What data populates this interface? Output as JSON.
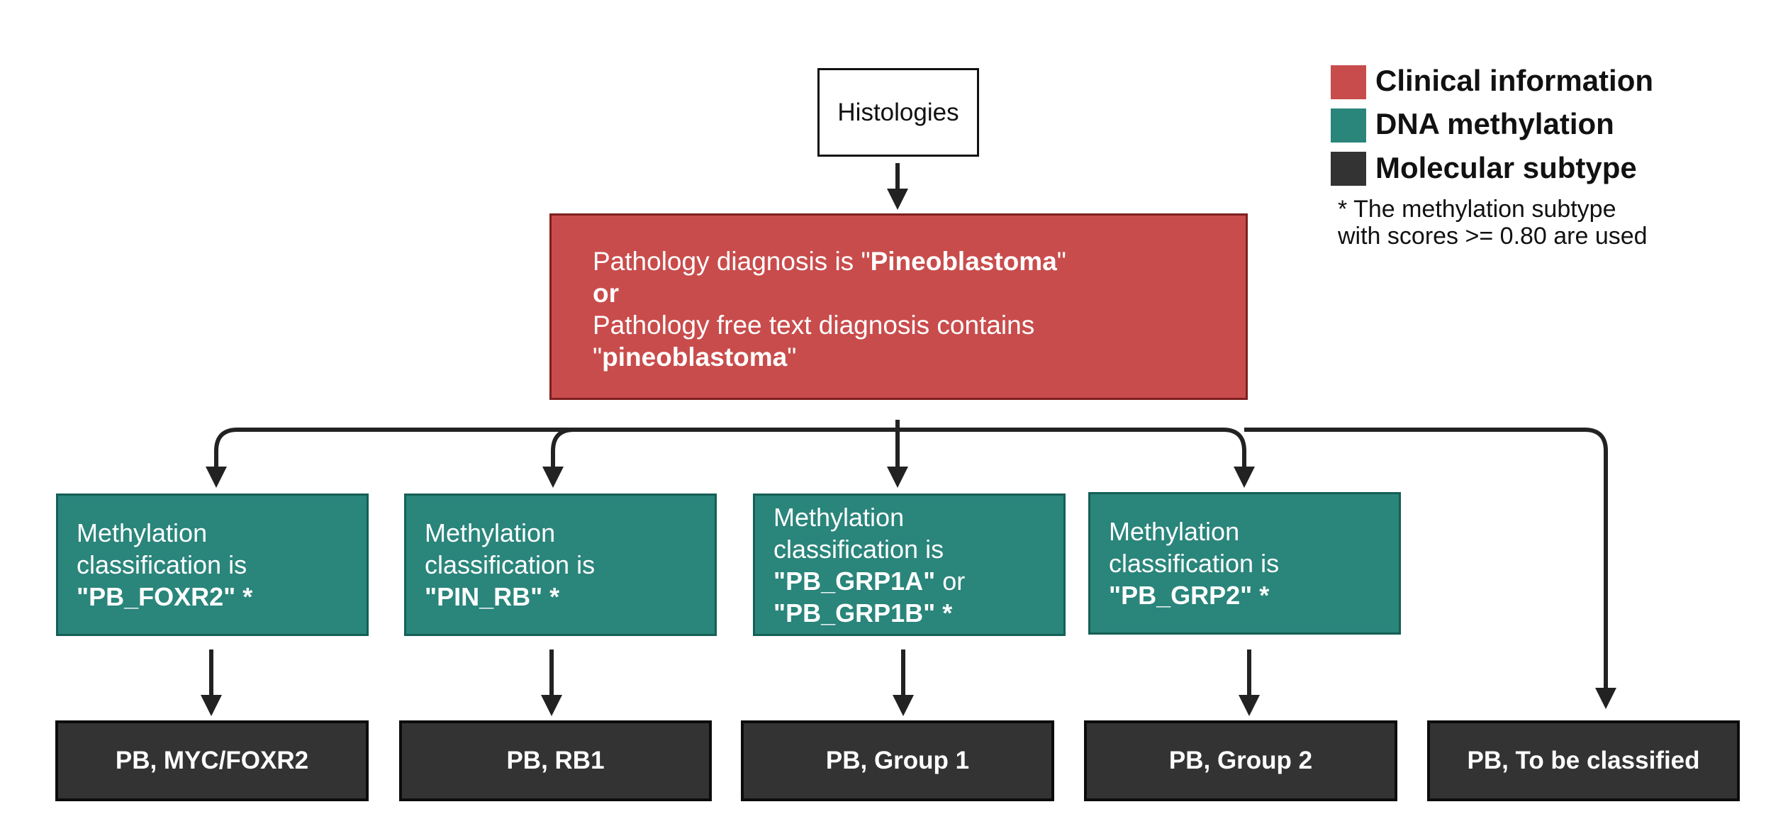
{
  "colors": {
    "clinical": "#c94c4c",
    "methylation": "#2a857b",
    "subtype": "#333333",
    "arrow": "#222222"
  },
  "legend": {
    "items": [
      {
        "label": "Clinical information",
        "color": "#c94c4c"
      },
      {
        "label": "DNA methylation",
        "color": "#2a857b"
      },
      {
        "label": "Molecular subtype",
        "color": "#333333"
      }
    ],
    "note_line1": "* The methylation subtype",
    "note_line2": "with scores >= 0.80 are used"
  },
  "histologies": "Histologies",
  "clinical_box": {
    "line1_prefix": "Pathology diagnosis is \"",
    "line1_bold": "Pineoblastoma",
    "line1_suffix": "\"",
    "or": "or",
    "line2": "Pathology free text diagnosis contains",
    "line3_prefix": "\"",
    "line3_bold": "pineoblastoma",
    "line3_suffix": "\""
  },
  "methylation_boxes": [
    {
      "line1": "Methylation",
      "line2": "classification is",
      "bold1": "\"PB_FOXR2\" *"
    },
    {
      "line1": "Methylation",
      "line2": "classification is",
      "bold1": "\"PIN_RB\" *"
    },
    {
      "line1": "Methylation",
      "line2": "classification is",
      "bold1": "\"PB_GRP1A\"",
      "plain": " or",
      "bold2": "\"PB_GRP1B\" *"
    },
    {
      "line1": "Methylation",
      "line2": "classification is",
      "bold1": "\"PB_GRP2\" *"
    }
  ],
  "subtypes": [
    "PB, MYC/FOXR2",
    "PB, RB1",
    "PB, Group 1",
    "PB, Group 2",
    "PB, To be classified"
  ]
}
